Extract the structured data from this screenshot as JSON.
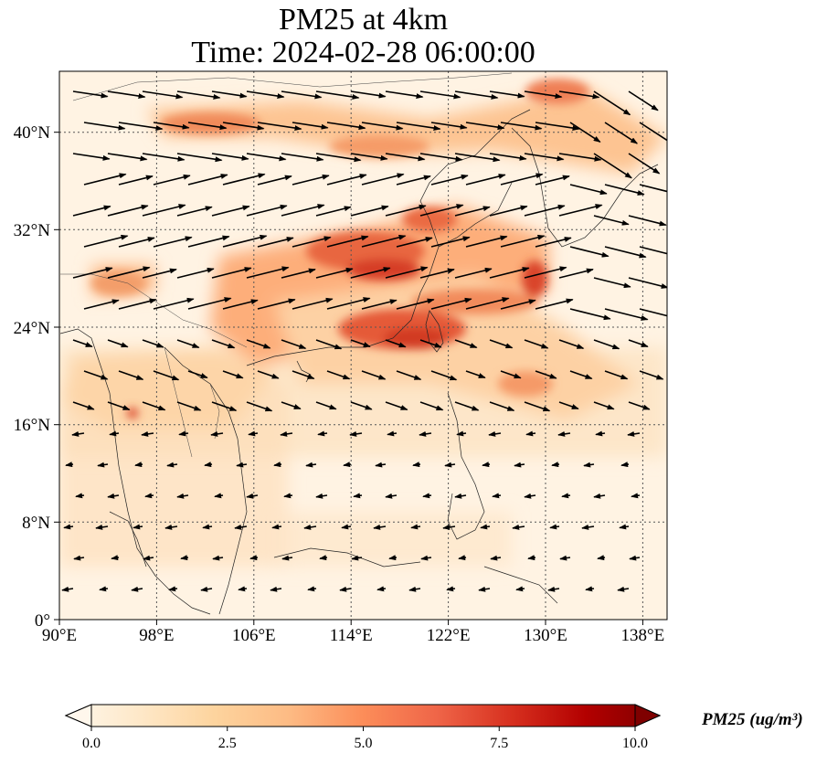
{
  "title": {
    "line1": "PM25 at 4km",
    "line2": "Time: 2024-02-28 06:00:00"
  },
  "map": {
    "lon_range": [
      90,
      140
    ],
    "lat_range": [
      0,
      45
    ],
    "lon_ticks": [
      "90°E",
      "98°E",
      "106°E",
      "114°E",
      "122°E",
      "130°E",
      "138°E"
    ],
    "lat_ticks": [
      "0°",
      "8°N",
      "16°N",
      "24°N",
      "32°N",
      "40°N"
    ],
    "gridlines": true,
    "field": "PM2.5 concentration at 4 km",
    "wind_vectors": true,
    "high_concentration_regions": [
      "Northern China plume near 40°N",
      "Eastern China / East China Sea band near 28–33°N",
      "Taiwan Strait / northern South China Sea near 22–25°N",
      "Philippine Sea band near 18–20°N"
    ]
  },
  "colorbar": {
    "label": "PM25 (ug/m³)",
    "ticks": [
      "0.0",
      "2.5",
      "5.0",
      "7.5",
      "10.0"
    ],
    "range": [
      0,
      10
    ],
    "colormap": "OrRd",
    "extend": "both"
  },
  "colors": {
    "low": "#fff7ec",
    "mid": "#fdbb84",
    "high": "#d7301f",
    "max": "#7f0000"
  }
}
